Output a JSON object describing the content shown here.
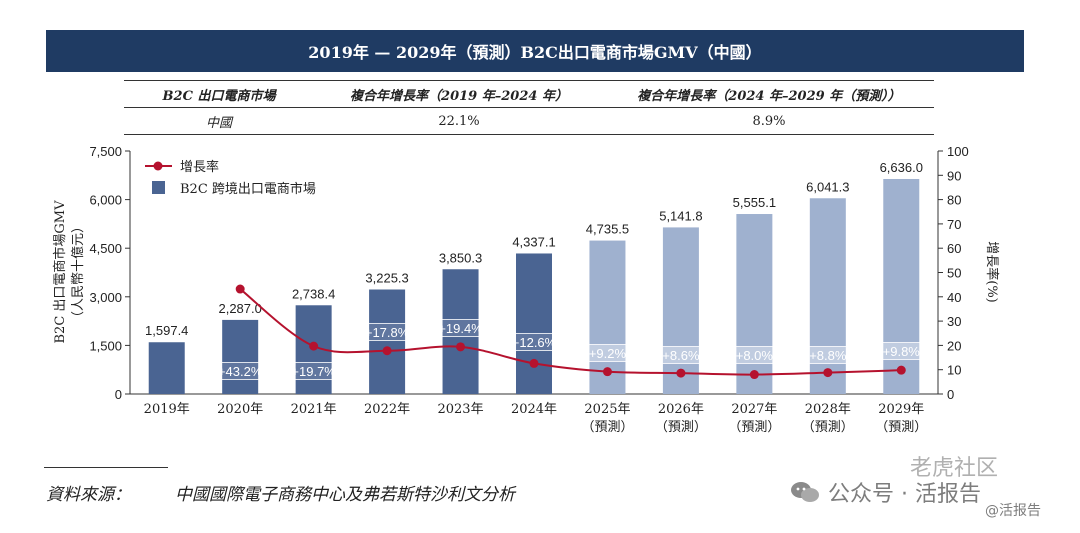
{
  "title": "2019年 — 2029年（預測）B2C出口電商市場GMV（中國）",
  "table": {
    "headers": [
      "B2C 出口電商市場",
      "複合年增長率（2019 年–2024 年）",
      "複合年增長率（2024 年–2029 年（預測））"
    ],
    "row": [
      "中國",
      "22.1%",
      "8.9%"
    ]
  },
  "chart_data": {
    "type": "bar",
    "categories": [
      "2019年",
      "2020年",
      "2021年",
      "2022年",
      "2023年",
      "2024年",
      "2025年\n（預測）",
      "2026年\n（預測）",
      "2027年\n（預測）",
      "2028年\n（預測）",
      "2029年\n（預測）"
    ],
    "series": [
      {
        "name": "B2C 跨境出口電商市場",
        "kind": "bar",
        "axis": "left",
        "values": [
          1597.4,
          2287.0,
          2738.4,
          3225.3,
          3850.3,
          4337.1,
          4735.5,
          5141.8,
          5555.1,
          6041.3,
          6636.0
        ],
        "labels": [
          "1,597.4",
          "2,287.0",
          "2,738.4",
          "3,225.3",
          "3,850.3",
          "4,337.1",
          "4,735.5",
          "5,141.8",
          "5,555.1",
          "6,041.3",
          "6,636.0"
        ],
        "color": "#4a6492",
        "forecast_color": "#9fb1cf"
      },
      {
        "name": "增長率",
        "kind": "line",
        "axis": "right",
        "values": [
          null,
          43.2,
          19.7,
          17.8,
          19.4,
          12.6,
          9.2,
          8.6,
          8.0,
          8.8,
          9.8
        ],
        "labels": [
          "",
          "+43.2%",
          "+19.7%",
          "+17.8%",
          "+19.4%",
          "+12.6%",
          "+9.2%",
          "+8.6%",
          "+8.0%",
          "+8.8%",
          "+9.8%"
        ],
        "color": "#b5122e"
      }
    ],
    "forecast_from_index": 6,
    "ylabel": "B2C 出口電商市場GMV\n（人民幣十億元）",
    "y2label": "增長率(%)",
    "ylim": [
      0,
      7500
    ],
    "y2lim": [
      0,
      100
    ],
    "yticks": [
      "0",
      "1,500",
      "3,000",
      "4,500",
      "6,000",
      "7,500"
    ],
    "y2ticks": [
      "0",
      "10",
      "20",
      "30",
      "40",
      "50",
      "60",
      "70",
      "80",
      "90",
      "100"
    ],
    "legend_position": "top-left",
    "grid": false
  },
  "source": {
    "label": "資料來源：",
    "text": "中國國際電子商務中心及弗若斯特沙利文分析"
  },
  "watermark": {
    "top": "老虎社区",
    "channel": "公众号 · 活报告",
    "handle": "@活报告"
  }
}
